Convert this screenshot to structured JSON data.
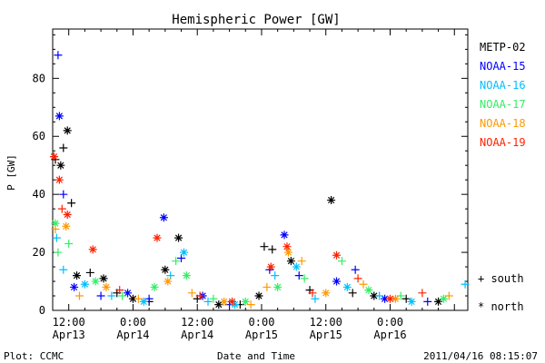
{
  "chart_data": {
    "type": "scatter",
    "title": "Hemispheric Power [GW]",
    "xlabel": "Date and Time",
    "ylabel": "P [GW]",
    "ylim": [
      0,
      97
    ],
    "yticks": [
      0,
      20,
      40,
      60,
      80
    ],
    "xlim": [
      "2011-04-13 09:00",
      "2011-04-16 14:30"
    ],
    "xtick_labels": [
      {
        "time": "2011-04-13 12:00",
        "line1": "12:00",
        "line2": "Apr13"
      },
      {
        "time": "2011-04-14 00:00",
        "line1": "0:00",
        "line2": "Apr14"
      },
      {
        "time": "2011-04-14 12:00",
        "line1": "12:00",
        "line2": "Apr14"
      },
      {
        "time": "2011-04-15 00:00",
        "line1": "0:00",
        "line2": "Apr15"
      },
      {
        "time": "2011-04-15 12:00",
        "line1": "12:00",
        "line2": "Apr15"
      },
      {
        "time": "2011-04-16 00:00",
        "line1": "0:00",
        "line2": "Apr16"
      }
    ],
    "legend_position": "right",
    "series": [
      {
        "name": "METP-02",
        "color": "#000000",
        "points": [
          {
            "t": "2011-04-13 09:30",
            "y": 52,
            "m": "+"
          },
          {
            "t": "2011-04-13 10:30",
            "y": 50,
            "m": "*"
          },
          {
            "t": "2011-04-13 11:00",
            "y": 56,
            "m": "+"
          },
          {
            "t": "2011-04-13 11:45",
            "y": 62,
            "m": "*"
          },
          {
            "t": "2011-04-13 12:30",
            "y": 37,
            "m": "+"
          },
          {
            "t": "2011-04-13 13:30",
            "y": 12,
            "m": "*"
          },
          {
            "t": "2011-04-13 16:00",
            "y": 13,
            "m": "+"
          },
          {
            "t": "2011-04-13 18:30",
            "y": 11,
            "m": "*"
          },
          {
            "t": "2011-04-13 21:00",
            "y": 6,
            "m": "+"
          },
          {
            "t": "2011-04-14 00:00",
            "y": 4,
            "m": "*"
          },
          {
            "t": "2011-04-14 03:00",
            "y": 3,
            "m": "+"
          },
          {
            "t": "2011-04-14 06:00",
            "y": 14,
            "m": "*"
          },
          {
            "t": "2011-04-14 08:30",
            "y": 25,
            "m": "*"
          },
          {
            "t": "2011-04-14 12:00",
            "y": 4,
            "m": "+"
          },
          {
            "t": "2011-04-14 16:00",
            "y": 2,
            "m": "*"
          },
          {
            "t": "2011-04-14 20:00",
            "y": 2,
            "m": "+"
          },
          {
            "t": "2011-04-14 23:30",
            "y": 5,
            "m": "*"
          },
          {
            "t": "2011-04-15 00:30",
            "y": 22,
            "m": "+"
          },
          {
            "t": "2011-04-15 02:00",
            "y": 21,
            "m": "+"
          },
          {
            "t": "2011-04-15 05:30",
            "y": 17,
            "m": "*"
          },
          {
            "t": "2011-04-15 09:00",
            "y": 7,
            "m": "+"
          },
          {
            "t": "2011-04-15 13:00",
            "y": 38,
            "m": "*"
          },
          {
            "t": "2011-04-15 17:00",
            "y": 6,
            "m": "+"
          },
          {
            "t": "2011-04-15 21:00",
            "y": 5,
            "m": "*"
          },
          {
            "t": "2011-04-16 03:00",
            "y": 4,
            "m": "+"
          },
          {
            "t": "2011-04-16 09:00",
            "y": 3,
            "m": "*"
          }
        ]
      },
      {
        "name": "NOAA-15",
        "color": "#0000ff",
        "points": [
          {
            "t": "2011-04-13 10:00",
            "y": 88,
            "m": "+"
          },
          {
            "t": "2011-04-13 10:15",
            "y": 67,
            "m": "*"
          },
          {
            "t": "2011-04-13 11:00",
            "y": 40,
            "m": "+"
          },
          {
            "t": "2011-04-13 13:00",
            "y": 8,
            "m": "*"
          },
          {
            "t": "2011-04-13 18:00",
            "y": 5,
            "m": "+"
          },
          {
            "t": "2011-04-13 23:00",
            "y": 6,
            "m": "*"
          },
          {
            "t": "2011-04-14 03:00",
            "y": 4,
            "m": "+"
          },
          {
            "t": "2011-04-14 05:45",
            "y": 32,
            "m": "*"
          },
          {
            "t": "2011-04-14 09:00",
            "y": 18,
            "m": "+"
          },
          {
            "t": "2011-04-14 13:00",
            "y": 5,
            "m": "*"
          },
          {
            "t": "2011-04-14 18:00",
            "y": 2,
            "m": "+"
          },
          {
            "t": "2011-04-15 01:30",
            "y": 14,
            "m": "+"
          },
          {
            "t": "2011-04-15 04:15",
            "y": 26,
            "m": "*"
          },
          {
            "t": "2011-04-15 07:00",
            "y": 12,
            "m": "+"
          },
          {
            "t": "2011-04-15 14:00",
            "y": 10,
            "m": "*"
          },
          {
            "t": "2011-04-15 17:30",
            "y": 14,
            "m": "+"
          },
          {
            "t": "2011-04-15 23:00",
            "y": 4,
            "m": "*"
          },
          {
            "t": "2011-04-16 07:00",
            "y": 3,
            "m": "+"
          }
        ]
      },
      {
        "name": "NOAA-16",
        "color": "#00bfff",
        "points": [
          {
            "t": "2011-04-13 09:45",
            "y": 25,
            "m": "+"
          },
          {
            "t": "2011-04-13 11:00",
            "y": 14,
            "m": "+"
          },
          {
            "t": "2011-04-13 15:00",
            "y": 9,
            "m": "*"
          },
          {
            "t": "2011-04-13 20:00",
            "y": 5,
            "m": "+"
          },
          {
            "t": "2011-04-14 02:00",
            "y": 3,
            "m": "*"
          },
          {
            "t": "2011-04-14 07:00",
            "y": 12,
            "m": "+"
          },
          {
            "t": "2011-04-14 09:30",
            "y": 20,
            "m": "*"
          },
          {
            "t": "2011-04-14 14:00",
            "y": 3,
            "m": "+"
          },
          {
            "t": "2011-04-14 19:00",
            "y": 2,
            "m": "*"
          },
          {
            "t": "2011-04-15 02:30",
            "y": 12,
            "m": "+"
          },
          {
            "t": "2011-04-15 06:30",
            "y": 15,
            "m": "*"
          },
          {
            "t": "2011-04-15 10:00",
            "y": 4,
            "m": "+"
          },
          {
            "t": "2011-04-15 16:00",
            "y": 8,
            "m": "*"
          },
          {
            "t": "2011-04-15 22:00",
            "y": 5,
            "m": "+"
          },
          {
            "t": "2011-04-16 04:00",
            "y": 3,
            "m": "*"
          },
          {
            "t": "2011-04-16 14:00",
            "y": 9,
            "m": "+"
          }
        ]
      },
      {
        "name": "NOAA-17",
        "color": "#33ee66",
        "points": [
          {
            "t": "2011-04-13 09:30",
            "y": 30,
            "m": "*"
          },
          {
            "t": "2011-04-13 10:00",
            "y": 20,
            "m": "+"
          },
          {
            "t": "2011-04-13 12:00",
            "y": 23,
            "m": "+"
          },
          {
            "t": "2011-04-13 17:00",
            "y": 10,
            "m": "*"
          },
          {
            "t": "2011-04-13 22:00",
            "y": 5,
            "m": "+"
          },
          {
            "t": "2011-04-14 04:00",
            "y": 8,
            "m": "*"
          },
          {
            "t": "2011-04-14 08:00",
            "y": 17,
            "m": "+"
          },
          {
            "t": "2011-04-14 10:00",
            "y": 12,
            "m": "*"
          },
          {
            "t": "2011-04-14 15:00",
            "y": 4,
            "m": "+"
          },
          {
            "t": "2011-04-14 21:00",
            "y": 3,
            "m": "*"
          },
          {
            "t": "2011-04-15 03:00",
            "y": 8,
            "m": "*"
          },
          {
            "t": "2011-04-15 08:00",
            "y": 11,
            "m": "+"
          },
          {
            "t": "2011-04-15 15:00",
            "y": 17,
            "m": "+"
          },
          {
            "t": "2011-04-15 20:00",
            "y": 7,
            "m": "*"
          },
          {
            "t": "2011-04-16 02:00",
            "y": 5,
            "m": "+"
          },
          {
            "t": "2011-04-16 10:00",
            "y": 4,
            "m": "*"
          }
        ]
      },
      {
        "name": "NOAA-18",
        "color": "#ff9900",
        "points": [
          {
            "t": "2011-04-13 09:30",
            "y": 28,
            "m": "+"
          },
          {
            "t": "2011-04-13 11:30",
            "y": 29,
            "m": "*"
          },
          {
            "t": "2011-04-13 14:00",
            "y": 5,
            "m": "+"
          },
          {
            "t": "2011-04-13 19:00",
            "y": 8,
            "m": "*"
          },
          {
            "t": "2011-04-14 01:00",
            "y": 4,
            "m": "+"
          },
          {
            "t": "2011-04-14 06:30",
            "y": 10,
            "m": "*"
          },
          {
            "t": "2011-04-14 11:00",
            "y": 6,
            "m": "+"
          },
          {
            "t": "2011-04-14 17:00",
            "y": 3,
            "m": "*"
          },
          {
            "t": "2011-04-14 22:00",
            "y": 2,
            "m": "+"
          },
          {
            "t": "2011-04-15 01:00",
            "y": 8,
            "m": "+"
          },
          {
            "t": "2011-04-15 05:00",
            "y": 20,
            "m": "*"
          },
          {
            "t": "2011-04-15 07:30",
            "y": 17,
            "m": "+"
          },
          {
            "t": "2011-04-15 12:00",
            "y": 6,
            "m": "*"
          },
          {
            "t": "2011-04-15 19:00",
            "y": 9,
            "m": "+"
          },
          {
            "t": "2011-04-16 01:00",
            "y": 4,
            "m": "*"
          },
          {
            "t": "2011-04-16 11:00",
            "y": 5,
            "m": "+"
          }
        ]
      },
      {
        "name": "NOAA-19",
        "color": "#ff2200",
        "points": [
          {
            "t": "2011-04-13 09:15",
            "y": 53,
            "m": "*"
          },
          {
            "t": "2011-04-13 10:15",
            "y": 45,
            "m": "*"
          },
          {
            "t": "2011-04-13 10:45",
            "y": 35,
            "m": "+"
          },
          {
            "t": "2011-04-13 11:45",
            "y": 33,
            "m": "*"
          },
          {
            "t": "2011-04-13 16:30",
            "y": 21,
            "m": "*"
          },
          {
            "t": "2011-04-13 21:30",
            "y": 7,
            "m": "+"
          },
          {
            "t": "2011-04-14 04:30",
            "y": 25,
            "m": "*"
          },
          {
            "t": "2011-04-14 12:30",
            "y": 5,
            "m": "+"
          },
          {
            "t": "2011-04-14 18:30",
            "y": 3,
            "m": "*"
          },
          {
            "t": "2011-04-15 01:45",
            "y": 15,
            "m": "*"
          },
          {
            "t": "2011-04-15 04:45",
            "y": 22,
            "m": "*"
          },
          {
            "t": "2011-04-15 09:30",
            "y": 6,
            "m": "+"
          },
          {
            "t": "2011-04-15 14:00",
            "y": 19,
            "m": "*"
          },
          {
            "t": "2011-04-15 18:00",
            "y": 11,
            "m": "+"
          },
          {
            "t": "2011-04-16 00:00",
            "y": 4,
            "m": "*"
          },
          {
            "t": "2011-04-16 06:00",
            "y": 6,
            "m": "+"
          }
        ]
      }
    ],
    "marker_legend": [
      {
        "symbol": "+",
        "label": "south"
      },
      {
        "symbol": "*",
        "label": "north"
      }
    ]
  },
  "footer": {
    "left": "Plot: CCMC",
    "right": "2011/04/16 08:15:07"
  }
}
